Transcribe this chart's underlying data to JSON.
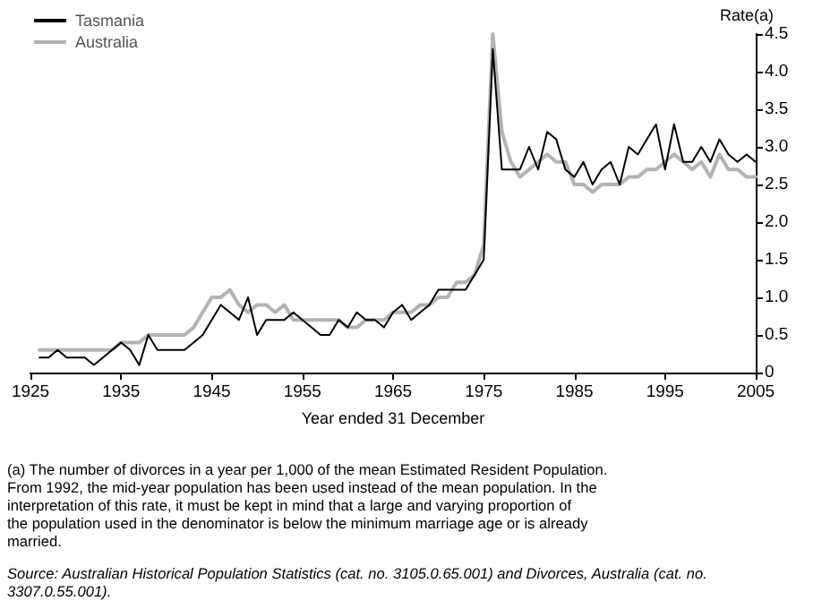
{
  "chart_data": {
    "type": "line",
    "xlabel": "Year ended 31 December",
    "ylabel": "Rate(a)",
    "x": [
      1926,
      1927,
      1928,
      1929,
      1930,
      1931,
      1932,
      1933,
      1934,
      1935,
      1936,
      1937,
      1938,
      1939,
      1940,
      1941,
      1942,
      1943,
      1944,
      1945,
      1946,
      1947,
      1948,
      1949,
      1950,
      1951,
      1952,
      1953,
      1954,
      1955,
      1956,
      1957,
      1958,
      1959,
      1960,
      1961,
      1962,
      1963,
      1964,
      1965,
      1966,
      1967,
      1968,
      1969,
      1970,
      1971,
      1972,
      1973,
      1974,
      1975,
      1976,
      1977,
      1978,
      1979,
      1980,
      1981,
      1982,
      1983,
      1984,
      1985,
      1986,
      1987,
      1988,
      1989,
      1990,
      1991,
      1992,
      1993,
      1994,
      1995,
      1996,
      1997,
      1998,
      1999,
      2000,
      2001,
      2002,
      2003,
      2004,
      2005
    ],
    "series": [
      {
        "name": "Tasmania",
        "color": "#000000",
        "values": [
          0.2,
          0.2,
          0.3,
          0.2,
          0.2,
          0.2,
          0.1,
          0.2,
          0.3,
          0.4,
          0.3,
          0.1,
          0.5,
          0.3,
          0.3,
          0.3,
          0.3,
          0.4,
          0.5,
          0.7,
          0.9,
          0.8,
          0.7,
          1.0,
          0.5,
          0.7,
          0.7,
          0.7,
          0.8,
          0.7,
          0.6,
          0.5,
          0.5,
          0.7,
          0.6,
          0.8,
          0.7,
          0.7,
          0.6,
          0.8,
          0.9,
          0.7,
          0.8,
          0.9,
          1.1,
          1.1,
          1.1,
          1.1,
          1.3,
          1.5,
          4.3,
          2.7,
          2.7,
          2.7,
          3.0,
          2.7,
          3.2,
          3.1,
          2.7,
          2.6,
          2.8,
          2.5,
          2.7,
          2.8,
          2.5,
          3.0,
          2.9,
          3.1,
          3.3,
          2.7,
          3.3,
          2.8,
          2.8,
          3.0,
          2.8,
          3.1,
          2.9,
          2.8,
          2.9,
          2.8
        ]
      },
      {
        "name": "Australia",
        "color": "#b3b3b3",
        "values": [
          0.3,
          0.3,
          0.3,
          0.3,
          0.3,
          0.3,
          0.3,
          0.3,
          0.3,
          0.4,
          0.4,
          0.4,
          0.5,
          0.5,
          0.5,
          0.5,
          0.5,
          0.6,
          0.8,
          1.0,
          1.0,
          1.1,
          0.9,
          0.8,
          0.9,
          0.9,
          0.8,
          0.9,
          0.7,
          0.7,
          0.7,
          0.7,
          0.7,
          0.7,
          0.6,
          0.6,
          0.7,
          0.7,
          0.7,
          0.8,
          0.8,
          0.8,
          0.9,
          0.9,
          1.0,
          1.0,
          1.2,
          1.2,
          1.3,
          1.7,
          4.5,
          3.2,
          2.8,
          2.6,
          2.7,
          2.8,
          2.9,
          2.8,
          2.8,
          2.5,
          2.5,
          2.4,
          2.5,
          2.5,
          2.5,
          2.6,
          2.6,
          2.7,
          2.7,
          2.8,
          2.9,
          2.8,
          2.7,
          2.8,
          2.6,
          2.9,
          2.7,
          2.7,
          2.6,
          2.6
        ]
      }
    ],
    "xlim": [
      1925,
      2005
    ],
    "xticks": [
      1925,
      1935,
      1945,
      1955,
      1965,
      1975,
      1985,
      1995,
      2005
    ],
    "ylim": [
      0,
      4.5
    ],
    "yticks": [
      0,
      0.5,
      {
        "value": 1,
        "label": "1.0"
      },
      1.5,
      {
        "value": 2,
        "label": "2.0"
      },
      2.5,
      {
        "value": 3,
        "label": "3.0"
      },
      3.5,
      {
        "value": 4,
        "label": "4.0"
      },
      4.5
    ],
    "grid": false,
    "legend": "top left",
    "marker": "none",
    "line_style": "solid",
    "annotations": [
      "(a) The number of divorces in a year per 1,000 of the mean Estimated Resident Population. From 1992, the mid-year population has been used instead of the mean population. In the interpretation of this rate, it must be kept in mind that a large and varying proportion of the population used in the denominator is below the minimum marriage age or is already married.",
      "Source: Australian Historical Population Statistics (cat. no. 3105.0.65.001) and Divorces, Australia (cat. no. 3307.0.55.001)."
    ]
  }
}
